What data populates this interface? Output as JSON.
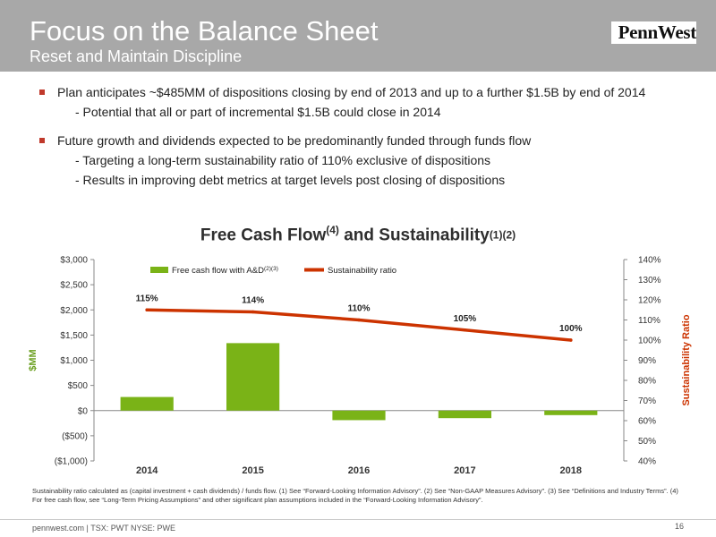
{
  "header": {
    "title": "Focus on the Balance Sheet",
    "subtitle": "Reset and Maintain Discipline",
    "logo": "PennWest"
  },
  "bullets": [
    {
      "text": "Plan anticipates ~$485MM of dispositions closing by end of 2013 and up to a further $1.5B by end of 2014",
      "subs": [
        "- Potential that all or part of incremental $1.5B could close in 2014"
      ]
    },
    {
      "text": "Future growth and dividends expected to be predominantly funded through funds flow",
      "subs": [
        "- Targeting a long-term sustainability ratio of 110% exclusive of dispositions",
        "- Results in improving debt metrics at target levels post closing of dispositions"
      ]
    }
  ],
  "chart_title": {
    "main": "Free Cash Flow",
    "sup1": "(4)",
    "mid": " and Sustainability",
    "sup2": "(1)(2)"
  },
  "chart_data": {
    "type": "bar",
    "categories": [
      "2014",
      "2015",
      "2016",
      "2017",
      "2018"
    ],
    "series": [
      {
        "name": "Free cash flow with A&D",
        "name_sup": "(2)(3)",
        "type": "bar",
        "axis": "left",
        "color": "#7ab317",
        "values": [
          270,
          1340,
          -190,
          -150,
          -90
        ]
      },
      {
        "name": "Sustainability ratio",
        "type": "line",
        "axis": "right",
        "color": "#cc3300",
        "values": [
          115,
          114,
          110,
          105,
          100
        ],
        "labels": [
          "115%",
          "114%",
          "110%",
          "105%",
          "100%"
        ]
      }
    ],
    "ylabel": "$MM",
    "y2label": "Sustainability Ratio",
    "ylim": [
      -1000,
      3000
    ],
    "y2lim": [
      40,
      140
    ],
    "yticks": [
      "$3,000",
      "$2,500",
      "$2,000",
      "$1,500",
      "$1,000",
      "$500",
      "$0",
      "($500)",
      "($1,000)"
    ],
    "y2ticks": [
      "140%",
      "130%",
      "120%",
      "110%",
      "100%",
      "90%",
      "80%",
      "70%",
      "60%",
      "50%",
      "40%"
    ],
    "legend": "top",
    "grid": false
  },
  "footnote": "Sustainability ratio calculated as (capital investment + cash dividends) / funds flow. (1) See “Forward-Looking Information Advisory”. (2) See “Non-GAAP Measures Advisory”. (3) See “Definitions and Industry Terms”. (4) For free cash flow, see “Long-Term Pricing Assumptions” and other significant plan assumptions included in the “Forward-Looking Information Advisory”.",
  "footer": "pennwest.com | TSX: PWT NYSE: PWE",
  "page_number": "16"
}
